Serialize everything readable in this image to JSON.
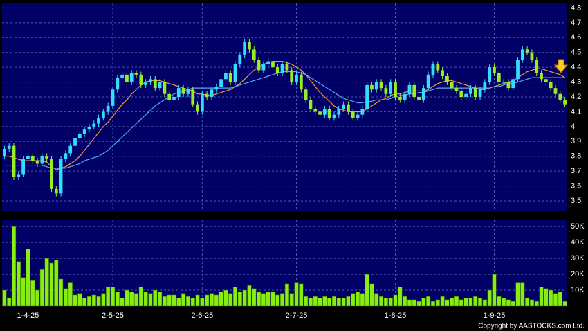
{
  "chart_data": [
    {
      "type": "candlestick",
      "up_color": "#33ddff",
      "down_color": "#99ee22",
      "ylim": [
        3.43,
        4.83
      ],
      "yticks": [
        3.5,
        3.6,
        3.7,
        3.8,
        3.9,
        4,
        4.1,
        4.2,
        4.3,
        4.4,
        4.5,
        4.6,
        4.7,
        4.8
      ],
      "grid": true,
      "open": [
        3.8,
        3.85,
        3.87,
        3.66,
        3.68,
        3.78,
        3.8,
        3.77,
        3.75,
        3.8,
        3.78,
        3.58,
        3.55,
        3.78,
        3.82,
        3.87,
        3.92,
        3.95,
        3.98,
        4.0,
        4.02,
        4.06,
        4.1,
        4.14,
        4.25,
        4.33,
        4.35,
        4.3,
        4.36,
        4.35,
        4.28,
        4.3,
        4.32,
        4.26,
        4.3,
        4.22,
        4.18,
        4.2,
        4.26,
        4.22,
        4.25,
        4.15,
        4.1,
        4.22,
        4.2,
        4.25,
        4.27,
        4.32,
        4.36,
        4.3,
        4.42,
        4.48,
        4.57,
        4.52,
        4.45,
        4.38,
        4.42,
        4.44,
        4.4,
        4.36,
        4.42,
        4.38,
        4.3,
        4.35,
        4.25,
        4.18,
        4.12,
        4.1,
        4.08,
        4.12,
        4.06,
        4.08,
        4.12,
        4.15,
        4.1,
        4.06,
        4.08,
        4.12,
        4.28,
        4.25,
        4.3,
        4.26,
        4.22,
        4.3,
        4.2,
        4.18,
        4.22,
        4.28,
        4.2,
        4.18,
        4.26,
        4.35,
        4.42,
        4.38,
        4.34,
        4.3,
        4.26,
        4.24,
        4.2,
        4.22,
        4.26,
        4.2,
        4.25,
        4.3,
        4.4,
        4.36,
        4.3,
        4.3,
        4.26,
        4.32,
        4.45,
        4.52,
        4.5,
        4.45,
        4.36,
        4.32,
        4.3,
        4.26,
        4.22,
        4.18
      ],
      "high": [
        3.87,
        3.89,
        3.89,
        3.7,
        3.8,
        3.82,
        3.82,
        3.79,
        3.82,
        3.82,
        3.8,
        3.6,
        3.8,
        3.84,
        3.89,
        3.94,
        3.97,
        4.0,
        4.02,
        4.04,
        4.08,
        4.12,
        4.16,
        4.27,
        4.35,
        4.37,
        4.37,
        4.38,
        4.38,
        4.37,
        4.32,
        4.34,
        4.34,
        4.32,
        4.32,
        4.24,
        4.22,
        4.28,
        4.28,
        4.27,
        4.27,
        4.17,
        4.24,
        4.24,
        4.27,
        4.29,
        4.34,
        4.38,
        4.38,
        4.44,
        4.5,
        4.59,
        4.59,
        4.54,
        4.47,
        4.44,
        4.46,
        4.46,
        4.42,
        4.44,
        4.44,
        4.4,
        4.37,
        4.37,
        4.27,
        4.2,
        4.14,
        4.12,
        4.14,
        4.14,
        4.1,
        4.14,
        4.17,
        4.17,
        4.12,
        4.1,
        4.14,
        4.3,
        4.3,
        4.32,
        4.32,
        4.28,
        4.32,
        4.32,
        4.22,
        4.24,
        4.3,
        4.3,
        4.22,
        4.28,
        4.37,
        4.44,
        4.44,
        4.4,
        4.36,
        4.32,
        4.28,
        4.26,
        4.24,
        4.28,
        4.28,
        4.27,
        4.32,
        4.42,
        4.42,
        4.38,
        4.32,
        4.32,
        4.34,
        4.47,
        4.54,
        4.54,
        4.52,
        4.47,
        4.38,
        4.34,
        4.32,
        4.28,
        4.24,
        4.2
      ],
      "low": [
        3.78,
        3.83,
        3.64,
        3.64,
        3.66,
        3.76,
        3.75,
        3.73,
        3.73,
        3.76,
        3.56,
        3.53,
        3.53,
        3.76,
        3.8,
        3.85,
        3.9,
        3.93,
        3.96,
        3.98,
        4.0,
        4.04,
        4.08,
        4.12,
        4.23,
        4.31,
        4.28,
        4.28,
        4.33,
        4.26,
        4.26,
        4.28,
        4.24,
        4.24,
        4.2,
        4.16,
        4.16,
        4.18,
        4.2,
        4.2,
        4.13,
        4.08,
        4.08,
        4.18,
        4.18,
        4.23,
        4.25,
        4.3,
        4.28,
        4.28,
        4.4,
        4.46,
        4.5,
        4.43,
        4.36,
        4.36,
        4.4,
        4.38,
        4.34,
        4.34,
        4.36,
        4.28,
        4.28,
        4.23,
        4.16,
        4.1,
        4.08,
        4.06,
        4.06,
        4.04,
        4.04,
        4.06,
        4.1,
        4.08,
        4.04,
        4.04,
        4.06,
        4.1,
        4.23,
        4.23,
        4.24,
        4.2,
        4.2,
        4.18,
        4.16,
        4.16,
        4.2,
        4.18,
        4.16,
        4.16,
        4.24,
        4.33,
        4.36,
        4.32,
        4.28,
        4.24,
        4.22,
        4.18,
        4.18,
        4.2,
        4.18,
        4.18,
        4.23,
        4.28,
        4.34,
        4.28,
        4.28,
        4.24,
        4.24,
        4.3,
        4.43,
        4.48,
        4.43,
        4.34,
        4.3,
        4.28,
        4.24,
        4.2,
        4.16,
        4.13
      ],
      "close": [
        3.85,
        3.87,
        3.66,
        3.68,
        3.78,
        3.8,
        3.77,
        3.75,
        3.8,
        3.78,
        3.58,
        3.55,
        3.78,
        3.82,
        3.87,
        3.92,
        3.95,
        3.98,
        4.0,
        4.02,
        4.06,
        4.1,
        4.14,
        4.25,
        4.33,
        4.35,
        4.3,
        4.36,
        4.35,
        4.28,
        4.3,
        4.32,
        4.26,
        4.3,
        4.22,
        4.18,
        4.2,
        4.26,
        4.22,
        4.25,
        4.15,
        4.1,
        4.22,
        4.2,
        4.25,
        4.27,
        4.32,
        4.36,
        4.3,
        4.42,
        4.48,
        4.57,
        4.52,
        4.45,
        4.38,
        4.42,
        4.44,
        4.4,
        4.36,
        4.42,
        4.38,
        4.3,
        4.35,
        4.25,
        4.18,
        4.12,
        4.1,
        4.08,
        4.12,
        4.06,
        4.08,
        4.12,
        4.15,
        4.1,
        4.06,
        4.08,
        4.12,
        4.28,
        4.25,
        4.3,
        4.26,
        4.22,
        4.3,
        4.2,
        4.18,
        4.22,
        4.28,
        4.2,
        4.18,
        4.26,
        4.35,
        4.42,
        4.38,
        4.34,
        4.3,
        4.26,
        4.24,
        4.2,
        4.22,
        4.26,
        4.2,
        4.25,
        4.3,
        4.4,
        4.36,
        4.3,
        4.3,
        4.26,
        4.32,
        4.45,
        4.52,
        4.5,
        4.45,
        4.36,
        4.32,
        4.3,
        4.26,
        4.22,
        4.18,
        4.15
      ],
      "series": [
        {
          "color": "#ff9933",
          "values": [
            3.8,
            3.8,
            3.79,
            3.78,
            3.77,
            3.77,
            3.77,
            3.77,
            3.77,
            3.76,
            3.73,
            3.71,
            3.72,
            3.73,
            3.75,
            3.77,
            3.8,
            3.84,
            3.88,
            3.92,
            3.96,
            4.0,
            4.03,
            4.07,
            4.11,
            4.15,
            4.18,
            4.22,
            4.25,
            4.28,
            4.3,
            4.31,
            4.31,
            4.31,
            4.3,
            4.29,
            4.28,
            4.27,
            4.26,
            4.25,
            4.24,
            4.22,
            4.22,
            4.21,
            4.21,
            4.22,
            4.23,
            4.24,
            4.25,
            4.27,
            4.29,
            4.32,
            4.35,
            4.38,
            4.4,
            4.42,
            4.43,
            4.44,
            4.44,
            4.44,
            4.43,
            4.42,
            4.4,
            4.38,
            4.35,
            4.31,
            4.27,
            4.23,
            4.2,
            4.17,
            4.14,
            4.12,
            4.11,
            4.1,
            4.1,
            4.1,
            4.1,
            4.12,
            4.14,
            4.16,
            4.18,
            4.19,
            4.21,
            4.22,
            4.22,
            4.23,
            4.24,
            4.24,
            4.24,
            4.24,
            4.25,
            4.27,
            4.29,
            4.3,
            4.31,
            4.31,
            4.3,
            4.29,
            4.28,
            4.27,
            4.26,
            4.25,
            4.25,
            4.26,
            4.27,
            4.28,
            4.29,
            4.3,
            4.31,
            4.33,
            4.35,
            4.37,
            4.38,
            4.39,
            4.39,
            4.38,
            4.37,
            4.36,
            4.35,
            4.33
          ]
        },
        {
          "color": "#55aaee",
          "values": [
            3.74,
            3.74,
            3.74,
            3.74,
            3.74,
            3.74,
            3.74,
            3.74,
            3.74,
            3.73,
            3.72,
            3.72,
            3.72,
            3.72,
            3.73,
            3.74,
            3.75,
            3.77,
            3.78,
            3.79,
            3.8,
            3.82,
            3.84,
            3.87,
            3.9,
            3.93,
            3.96,
            3.99,
            4.02,
            4.05,
            4.08,
            4.11,
            4.14,
            4.16,
            4.18,
            4.2,
            4.22,
            4.23,
            4.24,
            4.25,
            4.26,
            4.26,
            4.26,
            4.26,
            4.26,
            4.26,
            4.26,
            4.26,
            4.26,
            4.27,
            4.28,
            4.29,
            4.3,
            4.31,
            4.32,
            4.33,
            4.34,
            4.35,
            4.36,
            4.37,
            4.37,
            4.37,
            4.37,
            4.36,
            4.35,
            4.33,
            4.31,
            4.29,
            4.27,
            4.25,
            4.23,
            4.21,
            4.19,
            4.18,
            4.17,
            4.16,
            4.16,
            4.17,
            4.17,
            4.18,
            4.18,
            4.18,
            4.19,
            4.2,
            4.21,
            4.21,
            4.22,
            4.22,
            4.23,
            4.23,
            4.24,
            4.25,
            4.26,
            4.26,
            4.26,
            4.26,
            4.26,
            4.26,
            4.26,
            4.26,
            4.26,
            4.26,
            4.26,
            4.26,
            4.27,
            4.27,
            4.28,
            4.29,
            4.29,
            4.3,
            4.31,
            4.32,
            4.33,
            4.33,
            4.33,
            4.33,
            4.33,
            4.33,
            4.33,
            4.33
          ]
        }
      ]
    },
    {
      "type": "bar",
      "color": "#88ee11",
      "ylim": [
        0,
        54000
      ],
      "yticks": [
        {
          "value": 10000,
          "label": "10K"
        },
        {
          "value": 20000,
          "label": "20K"
        },
        {
          "value": 30000,
          "label": "30K"
        },
        {
          "value": 40000,
          "label": "40K"
        },
        {
          "value": 50000,
          "label": "50K"
        }
      ],
      "grid": true,
      "categories": [
        null,
        null,
        null,
        null,
        null,
        "1-4-25",
        null,
        null,
        null,
        null,
        null,
        null,
        null,
        null,
        null,
        null,
        null,
        null,
        null,
        null,
        null,
        null,
        null,
        "2-5-25",
        null,
        null,
        null,
        null,
        null,
        null,
        null,
        null,
        null,
        null,
        null,
        null,
        null,
        null,
        null,
        null,
        null,
        null,
        "2-6-25",
        null,
        null,
        null,
        null,
        null,
        null,
        null,
        null,
        null,
        null,
        null,
        null,
        null,
        null,
        null,
        null,
        null,
        null,
        null,
        "2-7-25",
        null,
        null,
        null,
        null,
        null,
        null,
        null,
        null,
        null,
        null,
        null,
        null,
        null,
        null,
        null,
        null,
        null,
        null,
        null,
        null,
        "1-8-25",
        null,
        null,
        null,
        null,
        null,
        null,
        null,
        null,
        null,
        null,
        null,
        null,
        null,
        null,
        null,
        null,
        null,
        null,
        null,
        null,
        "1-9-25",
        null,
        null,
        null,
        null,
        null,
        null,
        null,
        null,
        null,
        null,
        null,
        null,
        null,
        null,
        null
      ],
      "values": [
        10000,
        5000,
        50000,
        28000,
        18000,
        36000,
        16000,
        10000,
        23000,
        30000,
        27000,
        29000,
        17000,
        11000,
        15000,
        7000,
        8000,
        5000,
        6000,
        7000,
        6000,
        8000,
        12000,
        12000,
        9000,
        5000,
        10000,
        9000,
        8000,
        12000,
        9000,
        8000,
        10000,
        9000,
        6000,
        7000,
        7000,
        5000,
        8000,
        6000,
        5000,
        7000,
        5000,
        7000,
        8000,
        7000,
        9000,
        10000,
        8000,
        12000,
        9000,
        10000,
        13000,
        11000,
        9000,
        8000,
        9000,
        9000,
        7000,
        8000,
        14000,
        8000,
        15000,
        14000,
        6000,
        5000,
        6000,
        5000,
        6000,
        5000,
        6000,
        5000,
        5000,
        6000,
        8000,
        9000,
        8000,
        20000,
        14000,
        8000,
        6000,
        5000,
        5000,
        7000,
        12000,
        6000,
        4000,
        4000,
        3000,
        5000,
        6000,
        3000,
        4000,
        6000,
        4000,
        5000,
        6000,
        4000,
        5000,
        5000,
        6000,
        5000,
        4000,
        10000,
        20000,
        6000,
        5000,
        4000,
        3000,
        15000,
        15000,
        5000,
        4000,
        3000,
        12000,
        11000,
        10000,
        8000,
        9000,
        3000
      ],
      "copyright": "Copyright by AASTOCKS.com Ltd."
    }
  ]
}
